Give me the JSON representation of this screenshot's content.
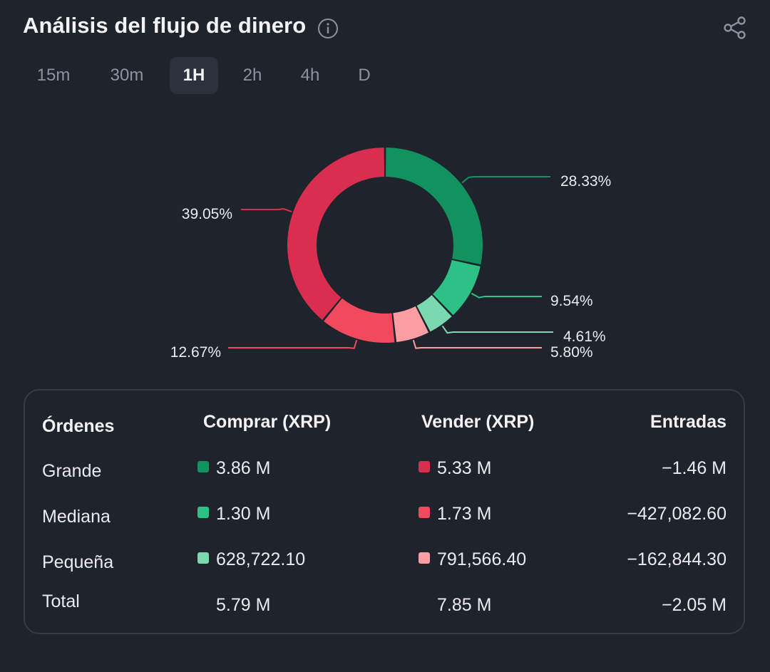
{
  "header": {
    "title": "Análisis del flujo de dinero"
  },
  "tabs": [
    {
      "label": "15m",
      "active": false
    },
    {
      "label": "30m",
      "active": false
    },
    {
      "label": "1H",
      "active": true
    },
    {
      "label": "2h",
      "active": false
    },
    {
      "label": "4h",
      "active": false
    },
    {
      "label": "D",
      "active": false
    }
  ],
  "chart_data": {
    "type": "pie",
    "slices": [
      {
        "label": "28.33%",
        "value": 28.33,
        "color": "#12925f"
      },
      {
        "label": "9.54%",
        "value": 9.54,
        "color": "#2ec186"
      },
      {
        "label": "4.61%",
        "value": 4.61,
        "color": "#7ad9ae"
      },
      {
        "label": "5.80%",
        "value": 5.8,
        "color": "#fc9ea3"
      },
      {
        "label": "12.67%",
        "value": 12.67,
        "color": "#f14a5f"
      },
      {
        "label": "39.05%",
        "value": 39.05,
        "color": "#d92e4f"
      }
    ]
  },
  "table": {
    "headers": {
      "orders": "Órdenes",
      "buy": "Comprar (XRP)",
      "sell": "Vender (XRP)",
      "inflow": "Entradas"
    },
    "rows": [
      {
        "label": "Grande",
        "buy": "3.86 M",
        "sell": "5.33 M",
        "inflow": "−1.46 M",
        "buy_color": "#12925f",
        "sell_color": "#d92e4f"
      },
      {
        "label": "Mediana",
        "buy": "1.30 M",
        "sell": "1.73 M",
        "inflow": "−427,082.60",
        "buy_color": "#2ec186",
        "sell_color": "#f14a5f"
      },
      {
        "label": "Pequeña",
        "buy": "628,722.10",
        "sell": "791,566.40",
        "inflow": "−162,844.30",
        "buy_color": "#7ad9ae",
        "sell_color": "#fc9ea3"
      }
    ],
    "total": {
      "label": "Total",
      "buy": "5.79 M",
      "sell": "7.85 M",
      "inflow": "−2.05 M"
    }
  }
}
